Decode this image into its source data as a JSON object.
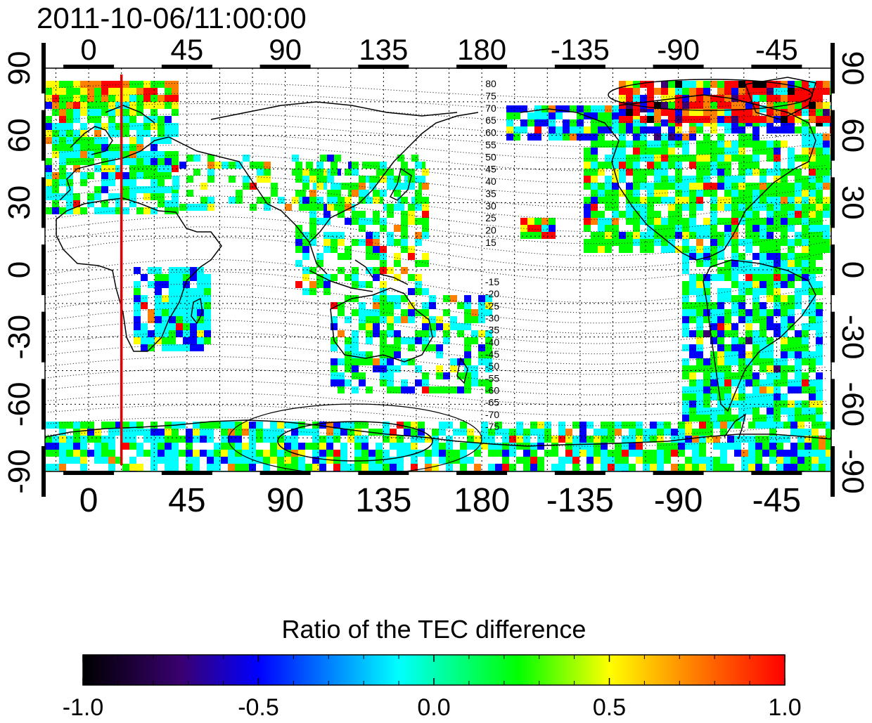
{
  "timestamp": "2011-10-06/11:00:00",
  "x_ticks": [
    "0",
    "45",
    "90",
    "135",
    "180",
    "-135",
    "-90",
    "-45"
  ],
  "y_ticks": [
    "90",
    "60",
    "30",
    "0",
    "-30",
    "-60",
    "-90"
  ],
  "contour_labels_north": [
    "80",
    "75",
    "70",
    "65",
    "60",
    "55",
    "50",
    "45",
    "40",
    "35",
    "30",
    "25",
    "20",
    "15"
  ],
  "contour_labels_south": [
    "-15",
    "-20",
    "-25",
    "-30",
    "-35",
    "-40",
    "-45",
    "-50",
    "-55",
    "-60",
    "-65",
    "-70",
    "-75"
  ],
  "marker_longitude": 15,
  "colorbar": {
    "title": "Ratio of the TEC difference",
    "ticks": [
      "-1.0",
      "-0.5",
      "0.0",
      "0.5",
      "1.0"
    ],
    "range": [
      -1.0,
      1.0
    ],
    "colors": [
      "#000000",
      "#3a0070",
      "#0000ff",
      "#00ffff",
      "#00ff00",
      "#ffff00",
      "#ff7f00",
      "#ff0000"
    ]
  },
  "colors": {
    "marker_line": "#e00000",
    "land_outline": "#000000",
    "grid": "#000000"
  }
}
